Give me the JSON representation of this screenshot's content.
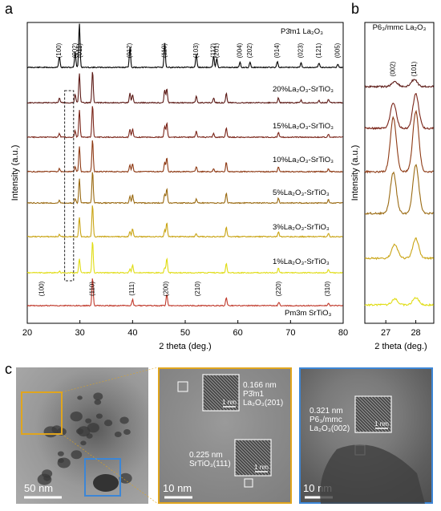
{
  "panel_labels": {
    "a": "a",
    "b": "b",
    "c": "c"
  },
  "chart_data": [
    {
      "id": "a",
      "type": "line",
      "xlabel": "2 theta (deg.)",
      "ylabel": "Intensity (a.u.)",
      "xlim": [
        20,
        80
      ],
      "xticks": [
        "20",
        "30",
        "40",
        "50",
        "60",
        "70",
        "80"
      ],
      "grid": false,
      "series": [
        {
          "name": "P3̄m1 La₂O₃",
          "color": "#000000",
          "peaks": [
            [
              26.1,
              0.25
            ],
            [
              29.1,
              0.35
            ],
            [
              29.9,
              1.0
            ],
            [
              39.5,
              0.45
            ],
            [
              46.1,
              0.55
            ],
            [
              52.1,
              0.3
            ],
            [
              55.4,
              0.25
            ],
            [
              56.0,
              0.2
            ],
            [
              60.4,
              0.12
            ],
            [
              62.3,
              0.12
            ],
            [
              67.5,
              0.14
            ],
            [
              72.0,
              0.1
            ],
            [
              75.4,
              0.1
            ],
            [
              79.0,
              0.08
            ]
          ]
        },
        {
          "name": "20%La₂O₃-SrTiO₃",
          "color": "#5c1a16",
          "peaks": [
            [
              26.1,
              0.15
            ],
            [
              29.1,
              0.25
            ],
            [
              29.9,
              0.9
            ],
            [
              32.4,
              1.0
            ],
            [
              39.5,
              0.3
            ],
            [
              40.0,
              0.25
            ],
            [
              46.1,
              0.4
            ],
            [
              46.5,
              0.45
            ],
            [
              52.1,
              0.2
            ],
            [
              55.4,
              0.15
            ],
            [
              57.8,
              0.3
            ],
            [
              67.7,
              0.15
            ],
            [
              72.0,
              0.08
            ],
            [
              75.4,
              0.08
            ],
            [
              77.2,
              0.1
            ]
          ]
        },
        {
          "name": "15%La₂O₃-SrTiO₃",
          "color": "#7a2418",
          "peaks": [
            [
              26.1,
              0.12
            ],
            [
              29.1,
              0.2
            ],
            [
              29.9,
              0.85
            ],
            [
              32.4,
              1.0
            ],
            [
              39.5,
              0.25
            ],
            [
              40.0,
              0.25
            ],
            [
              46.1,
              0.35
            ],
            [
              46.5,
              0.45
            ],
            [
              52.1,
              0.18
            ],
            [
              55.4,
              0.12
            ],
            [
              57.8,
              0.3
            ],
            [
              67.7,
              0.15
            ],
            [
              77.2,
              0.1
            ]
          ]
        },
        {
          "name": "10%La₂O₃-SrTiO₃",
          "color": "#8e3a14",
          "peaks": [
            [
              26.1,
              0.1
            ],
            [
              29.1,
              0.15
            ],
            [
              29.9,
              0.8
            ],
            [
              32.4,
              1.0
            ],
            [
              39.5,
              0.22
            ],
            [
              40.0,
              0.25
            ],
            [
              46.1,
              0.3
            ],
            [
              46.5,
              0.45
            ],
            [
              52.1,
              0.15
            ],
            [
              55.4,
              0.1
            ],
            [
              57.8,
              0.3
            ],
            [
              67.7,
              0.15
            ],
            [
              77.2,
              0.1
            ]
          ]
        },
        {
          "name": "5%La₂O₃-SrTiO₃",
          "color": "#9a6a12",
          "peaks": [
            [
              26.1,
              0.08
            ],
            [
              29.1,
              0.12
            ],
            [
              29.9,
              0.75
            ],
            [
              32.4,
              1.0
            ],
            [
              39.5,
              0.2
            ],
            [
              40.0,
              0.25
            ],
            [
              46.1,
              0.28
            ],
            [
              46.5,
              0.45
            ],
            [
              52.1,
              0.12
            ],
            [
              57.8,
              0.3
            ],
            [
              67.7,
              0.15
            ],
            [
              77.2,
              0.1
            ]
          ]
        },
        {
          "name": "3%La₂O₃-SrTiO₃",
          "color": "#c9a414",
          "peaks": [
            [
              26.1,
              0.06
            ],
            [
              29.9,
              0.6
            ],
            [
              32.4,
              1.0
            ],
            [
              39.5,
              0.15
            ],
            [
              40.0,
              0.25
            ],
            [
              46.1,
              0.2
            ],
            [
              46.5,
              0.45
            ],
            [
              52.1,
              0.1
            ],
            [
              57.8,
              0.3
            ],
            [
              67.7,
              0.15
            ],
            [
              77.2,
              0.1
            ]
          ]
        },
        {
          "name": "1%La₂O₃-SrTiO₃",
          "color": "#e0dc14",
          "peaks": [
            [
              26.1,
              0.05
            ],
            [
              29.9,
              0.45
            ],
            [
              32.4,
              1.0
            ],
            [
              39.5,
              0.12
            ],
            [
              40.0,
              0.25
            ],
            [
              46.1,
              0.15
            ],
            [
              46.5,
              0.45
            ],
            [
              57.8,
              0.3
            ],
            [
              67.7,
              0.15
            ],
            [
              77.2,
              0.1
            ]
          ]
        },
        {
          "name": "Pm3m SrTiO₃",
          "color": "#c0392b",
          "peaks": [
            [
              32.4,
              1.0
            ],
            [
              40.0,
              0.22
            ],
            [
              46.5,
              0.42
            ],
            [
              57.8,
              0.3
            ],
            [
              67.8,
              0.13
            ],
            [
              77.2,
              0.1
            ]
          ]
        }
      ],
      "reference_labels": {
        "La2O3": [
          {
            "text": "(100)",
            "x": 26.1
          },
          {
            "text": "(002)",
            "x": 29.1
          },
          {
            "text": "(011)",
            "x": 30.0
          },
          {
            "text": "(012)",
            "x": 39.5
          },
          {
            "text": "(110)",
            "x": 46.1
          },
          {
            "text": "(103)",
            "x": 52.1
          },
          {
            "text": "(112)",
            "x": 55.4
          },
          {
            "text": "(201)",
            "x": 56.0
          },
          {
            "text": "(004)",
            "x": 60.4
          },
          {
            "text": "(202)",
            "x": 62.3
          },
          {
            "text": "(014)",
            "x": 67.5
          },
          {
            "text": "(023)",
            "x": 72.0
          },
          {
            "text": "(121)",
            "x": 75.4
          },
          {
            "text": "(005)",
            "x": 79.0
          }
        ],
        "SrTiO3": [
          {
            "text": "(100)",
            "x": 22.8
          },
          {
            "text": "(110)",
            "x": 32.4
          },
          {
            "text": "(111)",
            "x": 39.9
          },
          {
            "text": "(200)",
            "x": 46.4
          },
          {
            "text": "(210)",
            "x": 52.4
          },
          {
            "text": "(220)",
            "x": 67.8
          },
          {
            "text": "(310)",
            "x": 77.1
          }
        ]
      }
    },
    {
      "id": "b",
      "type": "line",
      "title": "P6₃/mmc La₂O₃",
      "xlabel": "2 theta (deg.)",
      "ylabel": "Intensity (a.u.)",
      "xlim": [
        26.3,
        28.6
      ],
      "xticks": [
        "27",
        "28"
      ],
      "peak_labels": [
        {
          "text": "(002)",
          "x": 27.25
        },
        {
          "text": "(101)",
          "x": 27.95
        }
      ],
      "series": [
        {
          "name": "20%",
          "color": "#5c1a16",
          "peaks": [
            [
              27.3,
              0.35
            ],
            [
              27.95,
              0.5
            ]
          ]
        },
        {
          "name": "15%",
          "color": "#7a2418",
          "peaks": [
            [
              27.25,
              0.7
            ],
            [
              28.0,
              0.95
            ]
          ]
        },
        {
          "name": "10%",
          "color": "#8e3a14",
          "peaks": [
            [
              27.25,
              0.9
            ],
            [
              28.0,
              1.0
            ]
          ]
        },
        {
          "name": "5%",
          "color": "#9a6a12",
          "peaks": [
            [
              27.25,
              0.85
            ],
            [
              28.0,
              1.0
            ]
          ]
        },
        {
          "name": "3%",
          "color": "#c9a414",
          "peaks": [
            [
              27.3,
              0.5
            ],
            [
              28.0,
              0.7
            ]
          ]
        },
        {
          "name": "1%",
          "color": "#e0dc14",
          "peaks": [
            [
              27.3,
              0.35
            ],
            [
              28.0,
              0.45
            ]
          ]
        }
      ]
    }
  ],
  "tem": {
    "scalebar_1": "50 nm",
    "scalebar_2": "10 nm",
    "scalebar_3": "10 nm",
    "annot_201": [
      "0.166 nm",
      "P3̄m1",
      "La₂O₃(201)"
    ],
    "annot_111": [
      "0.225 nm",
      "SrTiO₃(111)"
    ],
    "annot_002": [
      "0.321 nm",
      "P6₃/mmc",
      "La₂O₃(002)"
    ],
    "inset_scale": "1 nm",
    "colors": {
      "orange": "#e0a51e",
      "blue": "#3c86d6"
    }
  }
}
